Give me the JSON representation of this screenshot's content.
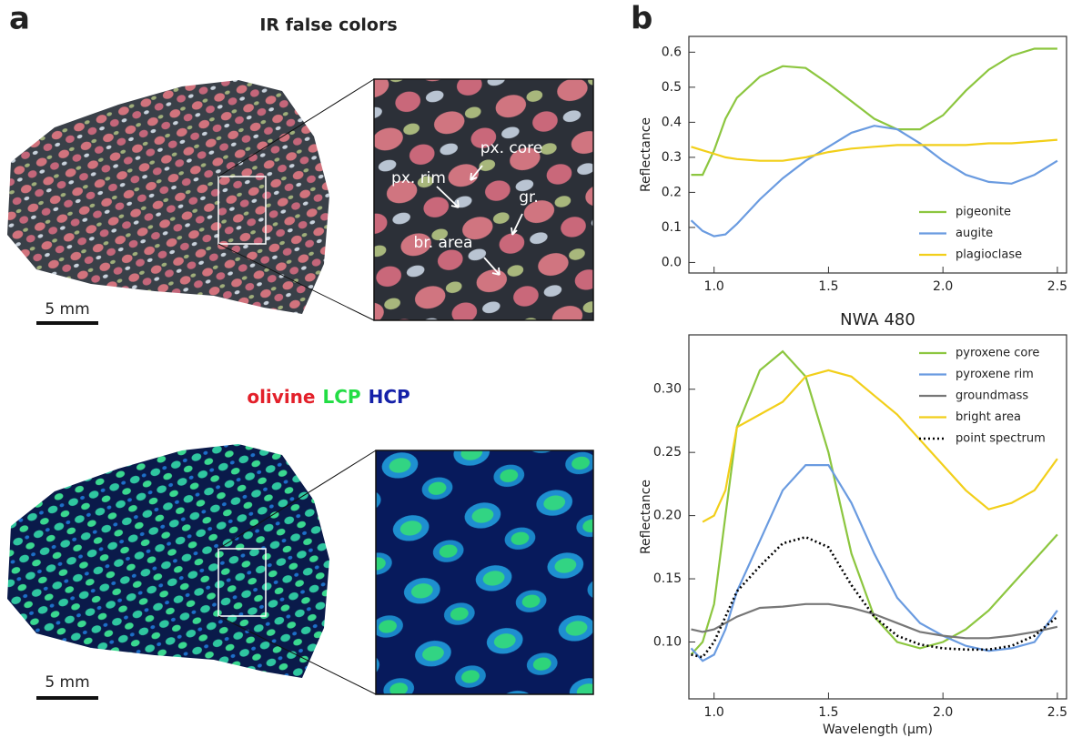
{
  "panel_a": {
    "label": "a",
    "title": "IR false colors",
    "scale_bars": [
      "5 mm",
      "5 mm"
    ],
    "annotations": [
      "px. core",
      "px. rim",
      "gr.",
      "br. area"
    ],
    "minerals": [
      {
        "name": "olivine",
        "color": "#e3202a"
      },
      {
        "name": "LCP",
        "color": "#22dd44"
      },
      {
        "name": "HCP",
        "color": "#1420a8"
      }
    ]
  },
  "panel_b": {
    "label": "b"
  },
  "chart_data": [
    {
      "type": "line",
      "ylabel": "Reflectance",
      "legend": "lower right",
      "x": [
        0.9,
        0.95,
        1.0,
        1.05,
        1.1,
        1.2,
        1.3,
        1.4,
        1.5,
        1.6,
        1.7,
        1.8,
        1.9,
        2.0,
        2.1,
        2.2,
        2.3,
        2.4,
        2.5
      ],
      "xlim": [
        0.89,
        2.54
      ],
      "ylim": [
        -0.03,
        0.645
      ],
      "xticks": [
        {
          "value": 1,
          "label": "1.0"
        },
        1.5,
        {
          "value": 2,
          "label": "2.0"
        },
        2.5
      ],
      "yticks": [
        {
          "value": 0,
          "label": "0.0"
        },
        0.1,
        0.2,
        0.3,
        0.4,
        0.5,
        0.6
      ],
      "series": [
        {
          "name": "pigeonite",
          "color": "#8cc63f",
          "values": [
            0.25,
            0.25,
            0.32,
            0.41,
            0.47,
            0.53,
            0.56,
            0.555,
            0.51,
            0.46,
            0.41,
            0.38,
            0.38,
            0.42,
            0.49,
            0.55,
            0.59,
            0.61,
            0.61
          ]
        },
        {
          "name": "augite",
          "color": "#6a9be0",
          "values": [
            0.12,
            0.09,
            0.075,
            0.08,
            0.11,
            0.18,
            0.24,
            0.29,
            0.33,
            0.37,
            0.39,
            0.38,
            0.34,
            0.29,
            0.25,
            0.23,
            0.225,
            0.25,
            0.29
          ]
        },
        {
          "name": "plagioclase",
          "color": "#f2cf1a",
          "values": [
            0.33,
            0.32,
            0.31,
            0.3,
            0.295,
            0.29,
            0.29,
            0.3,
            0.315,
            0.325,
            0.33,
            0.335,
            0.335,
            0.335,
            0.335,
            0.34,
            0.34,
            0.345,
            0.35
          ]
        }
      ]
    },
    {
      "type": "line",
      "title": "NWA 480",
      "xlabel": "Wavelength (µm)",
      "ylabel": "Reflectance",
      "legend": "upper right",
      "x": [
        0.9,
        0.95,
        1.0,
        1.05,
        1.1,
        1.2,
        1.3,
        1.4,
        1.5,
        1.6,
        1.7,
        1.8,
        1.9,
        2.0,
        2.1,
        2.2,
        2.3,
        2.4,
        2.5
      ],
      "xlim": [
        0.89,
        2.54
      ],
      "ylim": [
        0.055,
        0.343
      ],
      "xticks": [
        {
          "value": 1,
          "label": "1.0"
        },
        1.5,
        {
          "value": 2,
          "label": "2.0"
        },
        2.5
      ],
      "yticks": [
        {
          "value": 0.1,
          "label": "0.10"
        },
        0.15,
        {
          "value": 0.2,
          "label": "0.20"
        },
        0.25,
        {
          "value": 0.3,
          "label": "0.30"
        }
      ],
      "series": [
        {
          "name": "pyroxene core",
          "color": "#8cc63f",
          "values": [
            0.09,
            0.1,
            0.13,
            0.2,
            0.27,
            0.315,
            0.33,
            0.31,
            0.25,
            0.17,
            0.12,
            0.1,
            0.095,
            0.1,
            0.11,
            0.125,
            0.145,
            0.165,
            0.185
          ]
        },
        {
          "name": "pyroxene rim",
          "color": "#6a9be0",
          "values": [
            0.095,
            0.085,
            0.09,
            0.11,
            0.14,
            0.18,
            0.22,
            0.24,
            0.24,
            0.21,
            0.17,
            0.135,
            0.115,
            0.105,
            0.097,
            0.093,
            0.095,
            0.1,
            0.125
          ]
        },
        {
          "name": "groundmass",
          "color": "#777777",
          "values": [
            0.11,
            0.108,
            0.11,
            0.115,
            0.12,
            0.127,
            0.128,
            0.13,
            0.13,
            0.127,
            0.122,
            0.115,
            0.108,
            0.105,
            0.103,
            0.103,
            0.105,
            0.108,
            0.112
          ]
        },
        {
          "name": "bright area",
          "color": "#f2cf1a",
          "values": [
            null,
            0.195,
            0.2,
            0.22,
            0.27,
            0.28,
            0.29,
            0.31,
            0.315,
            0.31,
            0.295,
            0.28,
            0.26,
            0.24,
            0.22,
            0.205,
            0.21,
            0.22,
            0.245
          ]
        },
        {
          "name": "point spectrum",
          "color": "#000000",
          "dash": "dotted",
          "values": [
            0.09,
            0.088,
            0.1,
            0.12,
            0.14,
            0.16,
            0.178,
            0.183,
            0.175,
            0.145,
            0.12,
            0.105,
            0.098,
            0.095,
            0.094,
            0.094,
            0.097,
            0.105,
            0.12
          ]
        }
      ]
    }
  ]
}
